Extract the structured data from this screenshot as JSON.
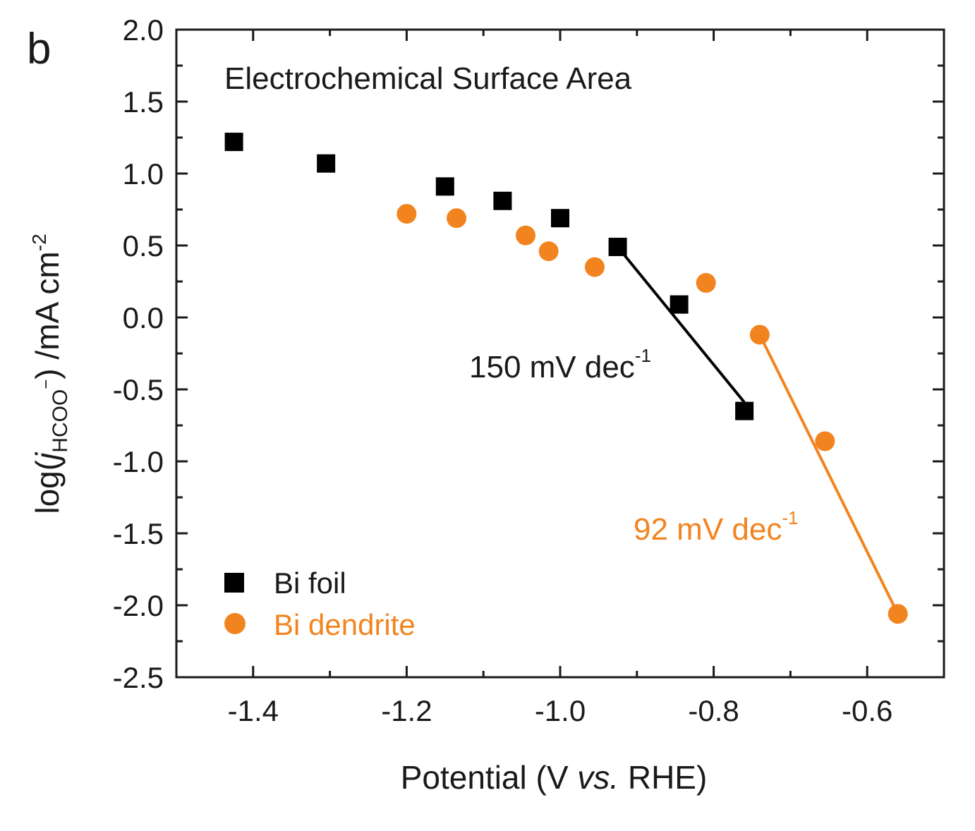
{
  "panel_label": "b",
  "colors": {
    "axis": "#1a1a1a",
    "series_foil": "#000000",
    "series_dendrite": "#f2841f"
  },
  "chart_data": {
    "type": "scatter",
    "title": "Electrochemical Surface Area",
    "xlabel": {
      "before": "Potential (V ",
      "italic": "vs.",
      "after": " RHE)"
    },
    "ylabel": {
      "prefix": "log(",
      "j": "j",
      "subscript": "HCOO",
      "subscript_sup": "−",
      "suffix": ") /mA cm",
      "unit_sup": "-2"
    },
    "xlim": [
      -1.5,
      -0.5
    ],
    "ylim": [
      -2.5,
      2.0
    ],
    "xticks": [
      -1.4,
      -1.2,
      -1.0,
      -0.8,
      -0.6
    ],
    "xtick_labels": [
      "-1.4",
      "-1.2",
      "-1.0",
      "-0.8",
      "-0.6"
    ],
    "yticks": [
      2.0,
      1.5,
      1.0,
      0.5,
      0.0,
      -0.5,
      -1.0,
      -1.5,
      -2.0,
      -2.5
    ],
    "ytick_labels": [
      "2.0",
      "1.5",
      "1.0",
      "0.5",
      "0.0",
      "-0.5",
      "-1.0",
      "-1.5",
      "-2.0",
      "-2.5"
    ],
    "grid": false,
    "legend_position": "bottom-left",
    "series": [
      {
        "name": "Bi foil",
        "marker": "square",
        "color": "#000000",
        "x": [
          -1.425,
          -1.305,
          -1.15,
          -1.075,
          -1.0,
          -0.925,
          -0.845,
          -0.76
        ],
        "y": [
          1.22,
          1.07,
          0.91,
          0.81,
          0.69,
          0.49,
          0.09,
          -0.65
        ]
      },
      {
        "name": "Bi dendrite",
        "marker": "circle",
        "color": "#f2841f",
        "x": [
          -1.2,
          -1.135,
          -1.045,
          -1.015,
          -0.955,
          -0.81,
          -0.74,
          -0.655,
          -0.56
        ],
        "y": [
          0.72,
          0.69,
          0.57,
          0.46,
          0.35,
          0.24,
          -0.12,
          -0.86,
          -2.06
        ]
      }
    ],
    "fit_lines": [
      {
        "series": "Bi foil",
        "color": "#000000",
        "x": [
          -0.925,
          -0.76
        ],
        "y": [
          0.49,
          -0.59
        ]
      },
      {
        "series": "Bi dendrite",
        "color": "#f2841f",
        "x": [
          -0.74,
          -0.56
        ],
        "y": [
          -0.12,
          -2.06
        ]
      }
    ],
    "annotations": [
      {
        "id": "foil-slope",
        "text": "150 mV dec",
        "sup": "-1",
        "color": "#000000"
      },
      {
        "id": "dendrite-slope",
        "text": "92 mV dec",
        "sup": "-1",
        "color": "#f2841f"
      }
    ]
  }
}
